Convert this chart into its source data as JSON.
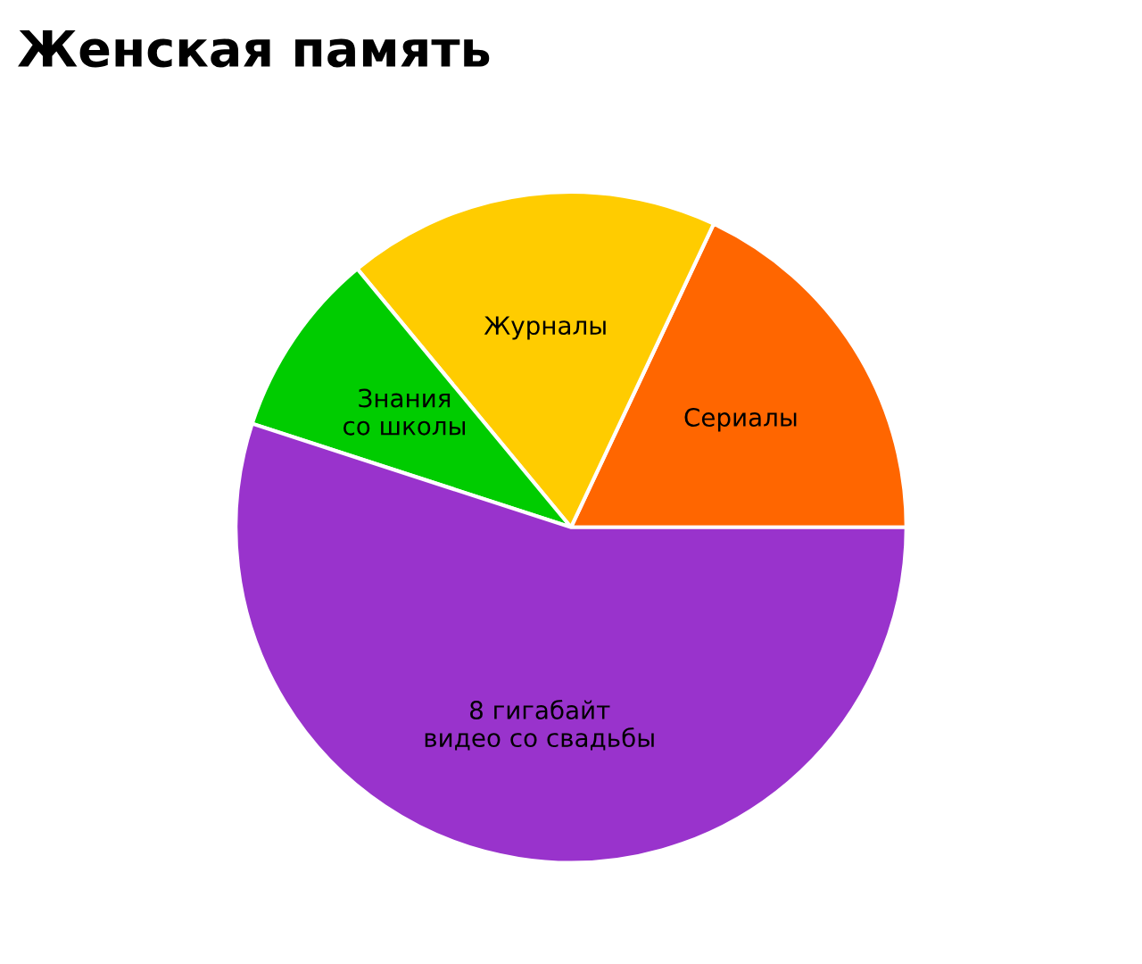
{
  "chart_data": {
    "type": "pie",
    "title": "Женская память",
    "categories": [
      "Сериалы",
      "Журналы",
      "Знания\nсо школы",
      "8 гигабайт\nвидео со свадьбы"
    ],
    "values": [
      18,
      18,
      9,
      55
    ],
    "colors": [
      "#ff6600",
      "#ffcc00",
      "#00cc00",
      "#9933cc"
    ]
  }
}
